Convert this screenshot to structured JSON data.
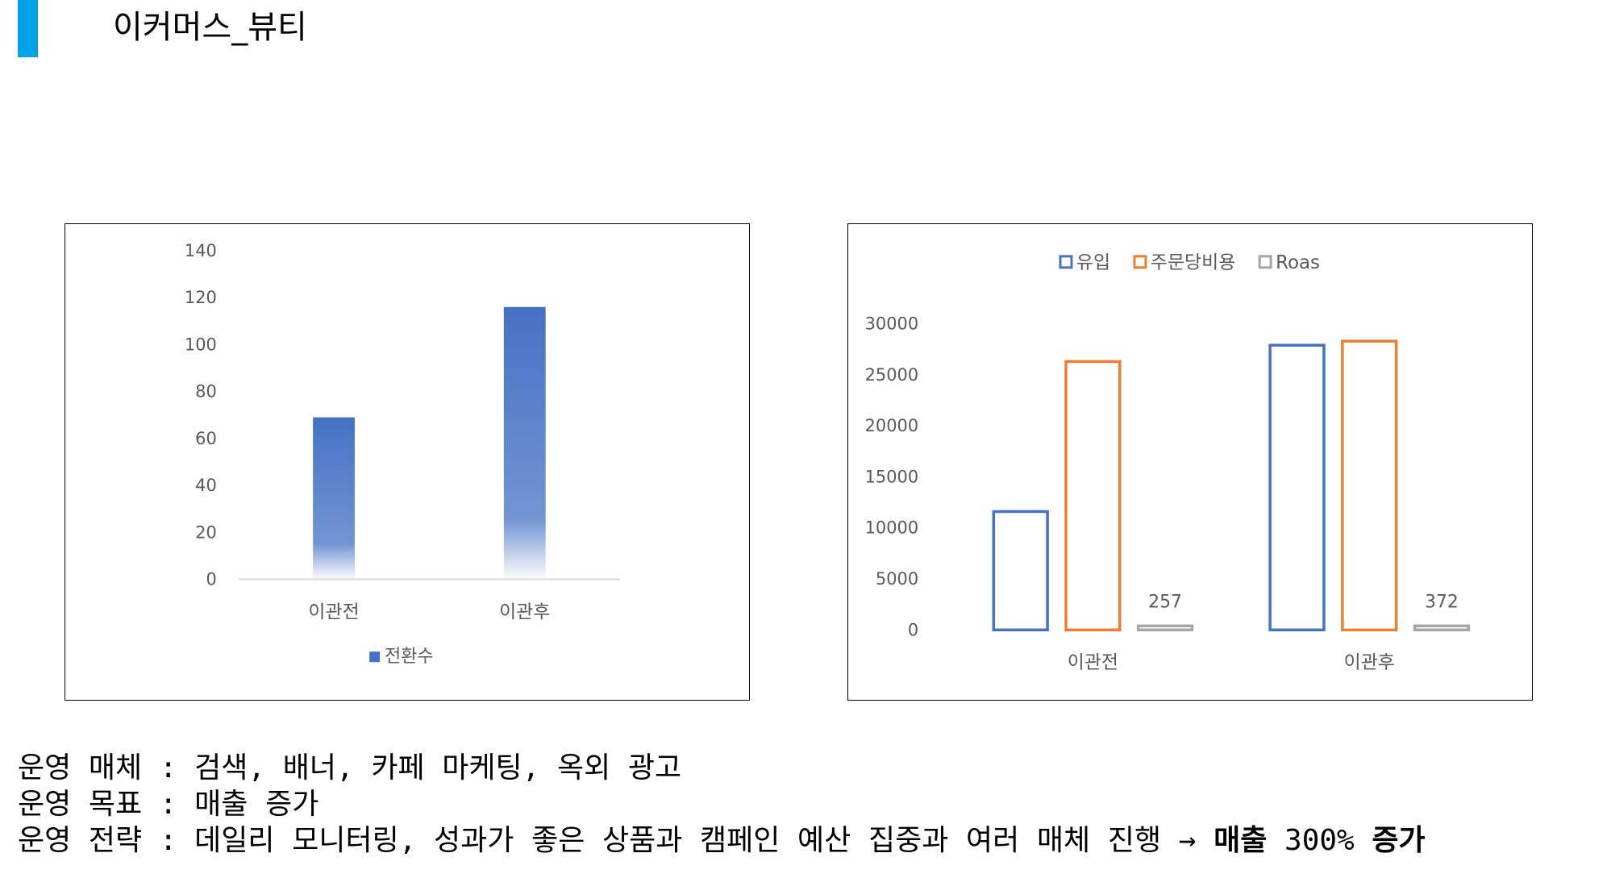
{
  "slide": {
    "title": "이커머스_뷰티",
    "accent_color": "#00a3e8"
  },
  "chart_data": [
    {
      "type": "bar",
      "categories": [
        "이관전",
        "이관후"
      ],
      "series": [
        {
          "name": "전환수",
          "values": [
            69,
            116
          ],
          "color": "#4472c4"
        }
      ],
      "ylim": [
        0,
        140
      ],
      "yticks": [
        0,
        20,
        40,
        60,
        80,
        100,
        120,
        140
      ],
      "legend": "bottom",
      "grid": false
    },
    {
      "type": "bar",
      "categories": [
        "이관전",
        "이관후"
      ],
      "series": [
        {
          "name": "유입",
          "values": [
            11600,
            27900
          ],
          "color": "#4472c4"
        },
        {
          "name": "주문당비용",
          "values": [
            26300,
            28300
          ],
          "color": "#ed7d31"
        },
        {
          "name": "Roas",
          "values": [
            257,
            372
          ],
          "color": "#a5a5a5",
          "data_labels": [
            "257",
            "372"
          ]
        }
      ],
      "ylim": [
        0,
        30000
      ],
      "yticks": [
        0,
        5000,
        10000,
        15000,
        20000,
        25000,
        30000
      ],
      "legend": "top",
      "grid": false
    }
  ],
  "notes": {
    "line1": "운영 매체 : 검색, 배너, 카페 마케팅, 옥외 광고",
    "line2": "운영 목표 : 매출 증가",
    "line3_prefix": "운영 전략 : 데일리 모니터링, 성과가 좋은 상품과 캠페인 예산 집중과 여러 매체 진행 → ",
    "line3_bold1": "매출",
    "line3_mid": " 300% ",
    "line3_bold2": "증가"
  }
}
